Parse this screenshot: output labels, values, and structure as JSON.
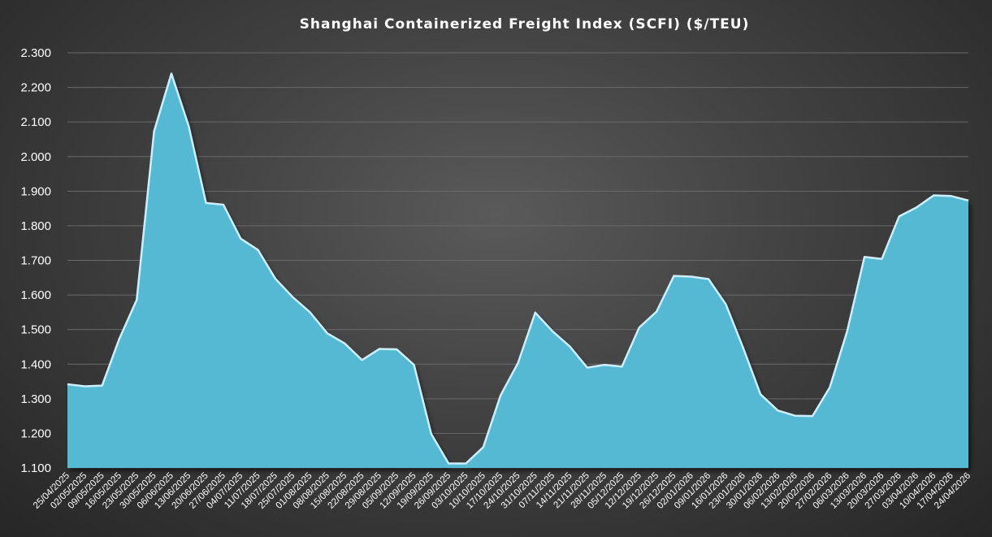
{
  "chart_data": {
    "type": "area",
    "title": "Shanghai Containerized Freight Index (SCFI) ($/TEU)",
    "xlabel": "",
    "ylabel": "",
    "ylim": [
      1100,
      2300
    ],
    "y_ticks": [
      "1.100",
      "1.200",
      "1.300",
      "1.400",
      "1.500",
      "1.600",
      "1.700",
      "1.800",
      "1.900",
      "2.000",
      "2.100",
      "2.200",
      "2.300"
    ],
    "grid": true,
    "legend": "none",
    "colors": {
      "fill": "#57b9d4",
      "edge": "#ccefff"
    },
    "x": [
      "25/04/2025",
      "02/05/2025",
      "09/05/2025",
      "16/05/2025",
      "23/05/2025",
      "30/05/2025",
      "06/06/2025",
      "13/06/2025",
      "20/06/2025",
      "27/06/2025",
      "04/07/2025",
      "11/07/2025",
      "18/07/2025",
      "25/07/2025",
      "01/08/2025",
      "08/08/2025",
      "15/08/2025",
      "22/08/2025",
      "29/08/2025",
      "05/09/2025",
      "12/09/2025",
      "19/09/2025",
      "26/09/2025",
      "03/10/2025",
      "10/10/2025",
      "17/10/2025",
      "24/10/2025",
      "31/10/2025",
      "07/11/2025",
      "14/11/2025",
      "21/11/2025",
      "28/11/2025",
      "05/12/2025",
      "12/12/2025",
      "19/12/2025",
      "26/12/2025",
      "02/01/2026",
      "09/01/2026",
      "16/01/2026",
      "23/01/2026",
      "30/01/2026",
      "06/02/2026",
      "13/02/2026",
      "20/02/2026",
      "27/02/2026",
      "06/03/2026",
      "13/03/2026",
      "20/03/2026",
      "27/03/2026",
      "03/04/2026",
      "10/04/2026",
      "17/04/2026",
      "24/04/2026"
    ],
    "values": [
      1342,
      1336,
      1338,
      1474,
      1586,
      2073,
      2240,
      2088,
      1866,
      1861,
      1763,
      1730,
      1647,
      1594,
      1550,
      1489,
      1460,
      1412,
      1444,
      1443,
      1398,
      1198,
      1113,
      1113,
      1160,
      1310,
      1403,
      1549,
      1495,
      1451,
      1390,
      1398,
      1393,
      1506,
      1552,
      1655,
      1653,
      1646,
      1573,
      1447,
      1313,
      1266,
      1251,
      1250,
      1333,
      1495,
      1710,
      1704,
      1827,
      1853,
      1888,
      1886,
      1873
    ]
  }
}
